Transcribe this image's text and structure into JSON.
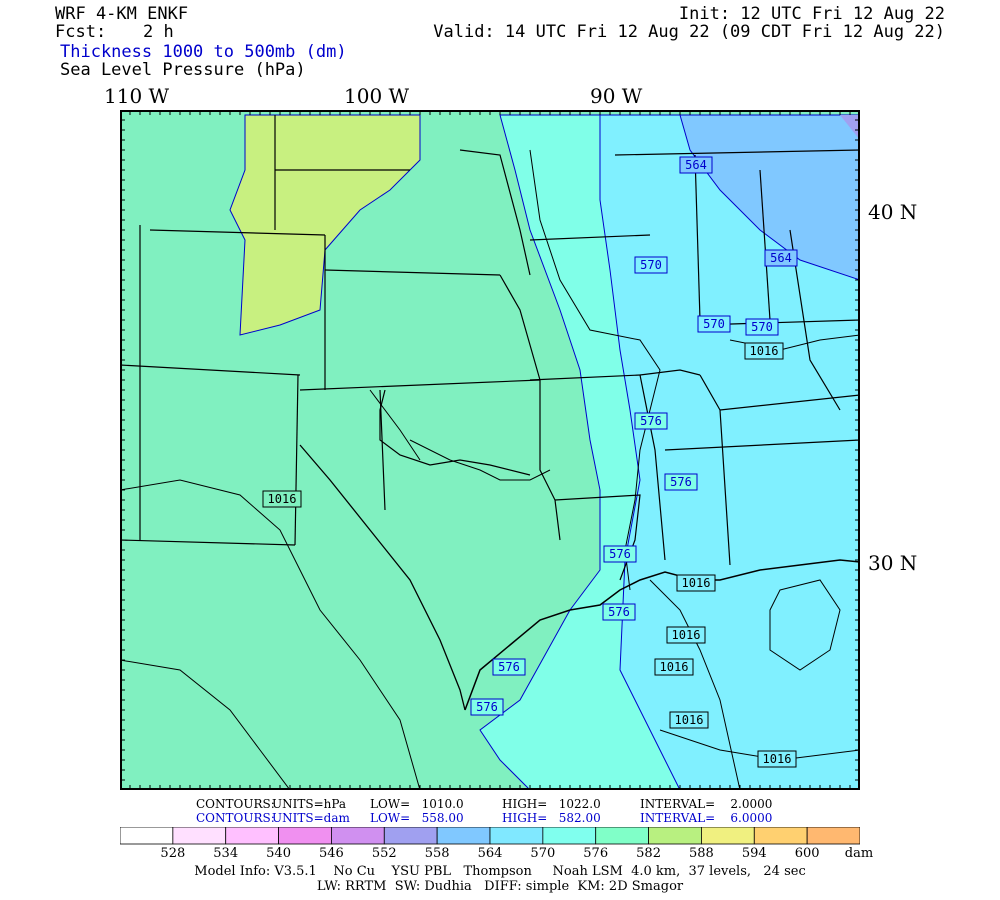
{
  "header": {
    "model": "WRF 4-KM ENKF",
    "fcst_label": "Fcst:",
    "fcst_value": "2 h",
    "init": "Init: 12 UTC Fri 12 Aug 22",
    "valid": "Valid: 14 UTC Fri 12 Aug 22 (09 CDT Fri 12 Aug 22)",
    "field1": "Thickness 1000 to 500mb (dm)",
    "field2": "Sea Level Pressure (hPa)"
  },
  "axes": {
    "lon_labels": [
      "110 W",
      "100 W",
      "90 W"
    ],
    "lat_labels": [
      "40 N",
      "30 N"
    ]
  },
  "contour_labels": {
    "pressure": [
      "1016",
      "1016",
      "1016",
      "1016",
      "1016",
      "1016",
      "1016"
    ],
    "thickness": [
      "564",
      "564",
      "570",
      "570",
      "570",
      "576",
      "576",
      "576",
      "576",
      "576",
      "576"
    ]
  },
  "contours_info": {
    "slp": {
      "label": "CONTOURS:",
      "units": "UNITS=hPa",
      "low": "LOW=   1010.0",
      "high": "HIGH=   1022.0",
      "interval": "INTERVAL=    2.0000"
    },
    "thk": {
      "label": "CONTOURS:",
      "units": "UNITS=dam",
      "low": "LOW=   558.00",
      "high": "HIGH=   582.00",
      "interval": "INTERVAL=    6.0000"
    }
  },
  "colorbar": {
    "colors": [
      "#ffffff",
      "#ffe0ff",
      "#ffc0ff",
      "#f090f0",
      "#d090f0",
      "#a0a0f0",
      "#80c8ff",
      "#80e8ff",
      "#80ffee",
      "#80ffc8",
      "#b8f080",
      "#f0f080",
      "#ffd070",
      "#ffb870"
    ],
    "labels": [
      "528",
      "534",
      "540",
      "546",
      "552",
      "558",
      "564",
      "570",
      "576",
      "582",
      "588",
      "594",
      "600"
    ],
    "units": "dam"
  },
  "footer": {
    "line1": "Model Info: V3.5.1    No Cu    YSU PBL   Thompson     Noah LSM  4.0 km,  37 levels,   24 sec",
    "line2": "LW: RRTM  SW: Dudhia   DIFF: simple  KM: 2D Smagor"
  },
  "colors": {
    "fill_582": "#80f0c0",
    "fill_576": "#80ffe0",
    "fill_570": "#80f0ff",
    "fill_564": "#80c8ff",
    "fill_588": "#c8f080",
    "fill_558": "#a0a0f0",
    "thickness_line": "#0000cc",
    "pressure_line": "#000000"
  }
}
